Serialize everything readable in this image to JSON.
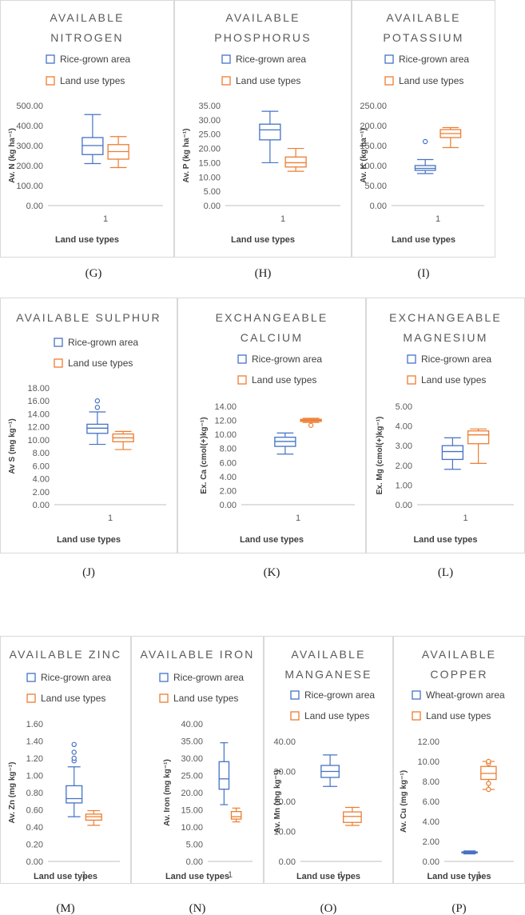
{
  "colors": {
    "series1": "#4472C4",
    "series2": "#ED7D31",
    "border": "#D9D9D9",
    "axis": "#BFBFBF"
  },
  "chart_data": [
    {
      "type": "box",
      "panel": "(G)",
      "title": [
        "AVAILABLE",
        "NITROGEN"
      ],
      "ylabel": "Av. N (kg ha⁻¹)",
      "xlabel": "Land use types",
      "category": "1",
      "yticks": [
        "0.00",
        "100.00",
        "200.00",
        "300.00",
        "400.00",
        "500.00"
      ],
      "ylim": [
        0,
        500
      ],
      "series": [
        {
          "name": "Rice-grown area",
          "min": 210,
          "q1": 255,
          "median": 300,
          "q3": 340,
          "max": 455,
          "outliers": []
        },
        {
          "name": "Land use types",
          "min": 190,
          "q1": 232,
          "median": 270,
          "q3": 305,
          "max": 345,
          "outliers": []
        }
      ]
    },
    {
      "type": "box",
      "panel": "(H)",
      "title": [
        "AVAILABLE",
        "PHOSPHORUS"
      ],
      "ylabel": "Av. P (kg ha⁻¹)",
      "xlabel": "Land use types",
      "category": "1",
      "yticks": [
        "0.00",
        "5.00",
        "10.00",
        "15.00",
        "20.00",
        "25.00",
        "30.00",
        "35.00"
      ],
      "ylim": [
        0,
        35
      ],
      "series": [
        {
          "name": "Rice-grown area",
          "min": 15,
          "q1": 23,
          "median": 26.5,
          "q3": 28.5,
          "max": 33,
          "outliers": []
        },
        {
          "name": "Land use types",
          "min": 12,
          "q1": 13.5,
          "median": 15,
          "q3": 17,
          "max": 20,
          "outliers": []
        }
      ]
    },
    {
      "type": "box",
      "panel": "(I)",
      "title": [
        "AVAILABLE",
        "POTASSIUM"
      ],
      "ylabel": "Av. K (kg ha⁻¹)",
      "xlabel": "Land use types",
      "category": "1",
      "yticks": [
        "0.00",
        "50.00",
        "100.00",
        "150.00",
        "200.00",
        "250.00"
      ],
      "ylim": [
        0,
        250
      ],
      "series": [
        {
          "name": "Rice-grown area",
          "min": 80,
          "q1": 88,
          "median": 93,
          "q3": 100,
          "max": 115,
          "outliers": [
            160
          ]
        },
        {
          "name": "Land use types",
          "min": 145,
          "q1": 170,
          "median": 180,
          "q3": 190,
          "max": 195,
          "outliers": []
        }
      ]
    },
    {
      "type": "box",
      "panel": "(J)",
      "title": [
        "AVAILABLE SULPHUR"
      ],
      "ylabel": "Av S (mg kg⁻¹)",
      "xlabel": "Land use types",
      "category": "1",
      "yticks": [
        "0.00",
        "2.00",
        "4.00",
        "6.00",
        "8.00",
        "10.00",
        "12.00",
        "14.00",
        "16.00",
        "18.00"
      ],
      "ylim": [
        0,
        18
      ],
      "series": [
        {
          "name": "Rice-grown area",
          "min": 9.3,
          "q1": 11,
          "median": 11.8,
          "q3": 12.4,
          "max": 14.3,
          "outliers": [
            15,
            16
          ]
        },
        {
          "name": "Land use types",
          "min": 8.5,
          "q1": 9.7,
          "median": 10.3,
          "q3": 10.9,
          "max": 11.3,
          "outliers": []
        }
      ]
    },
    {
      "type": "box",
      "panel": "(K)",
      "title": [
        "EXCHANGEABLE",
        "CALCIUM"
      ],
      "ylabel": "Ex. Ca (cmol(+)kg⁻¹)",
      "xlabel": "Land use types",
      "category": "1",
      "yticks": [
        "0.00",
        "2.00",
        "4.00",
        "6.00",
        "8.00",
        "10.00",
        "12.00",
        "14.00"
      ],
      "ylim": [
        0,
        14
      ],
      "series": [
        {
          "name": "Rice-grown area",
          "min": 7.2,
          "q1": 8.3,
          "median": 9,
          "q3": 9.6,
          "max": 10.2,
          "outliers": []
        },
        {
          "name": "Land use types",
          "min": 11.7,
          "q1": 11.85,
          "median": 12,
          "q3": 12.15,
          "max": 12.3,
          "outliers": [
            11.3
          ]
        }
      ]
    },
    {
      "type": "box",
      "panel": "(L)",
      "title": [
        "EXCHANGEABLE",
        "MAGNESIUM"
      ],
      "ylabel": "Ex. Mg (cmol(+)kg⁻¹)",
      "xlabel": "Land use types",
      "category": "1",
      "yticks": [
        "0.00",
        "1.00",
        "2.00",
        "3.00",
        "4.00",
        "5.00"
      ],
      "ylim": [
        0,
        5
      ],
      "series": [
        {
          "name": "Rice-grown area",
          "min": 1.8,
          "q1": 2.3,
          "median": 2.7,
          "q3": 3,
          "max": 3.4,
          "outliers": []
        },
        {
          "name": "Land use types",
          "min": 2.1,
          "q1": 3.1,
          "median": 3.55,
          "q3": 3.75,
          "max": 3.85,
          "outliers": []
        }
      ]
    },
    {
      "type": "box",
      "panel": "(M)",
      "title": [
        "AVAILABLE ZINC"
      ],
      "ylabel": "Av. Zn (mg kg⁻¹)",
      "xlabel": "Land use types",
      "category": "1",
      "yticks": [
        "0.00",
        "0.20",
        "0.40",
        "0.60",
        "0.80",
        "1.00",
        "1.20",
        "1.40",
        "1.60"
      ],
      "ylim": [
        0,
        1.6
      ],
      "series": [
        {
          "name": "Rice-grown area",
          "min": 0.52,
          "q1": 0.68,
          "median": 0.73,
          "q3": 0.88,
          "max": 1.1,
          "outliers": [
            1.17,
            1.2,
            1.27,
            1.36
          ]
        },
        {
          "name": "Land use types",
          "min": 0.42,
          "q1": 0.48,
          "median": 0.52,
          "q3": 0.55,
          "max": 0.59,
          "outliers": []
        }
      ]
    },
    {
      "type": "box",
      "panel": "(N)",
      "title": [
        "AVAILABLE IRON"
      ],
      "ylabel": "Av. Iron (mg kg⁻¹)",
      "xlabel": "Land use types",
      "category": "1",
      "yticks": [
        "0.00",
        "5.00",
        "10.00",
        "15.00",
        "20.00",
        "25.00",
        "30.00",
        "35.00",
        "40.00"
      ],
      "ylim": [
        0,
        40
      ],
      "series": [
        {
          "name": "Rice-grown area",
          "min": 16.5,
          "q1": 21,
          "median": 24,
          "q3": 29,
          "max": 34.5,
          "outliers": []
        },
        {
          "name": "Land use types",
          "min": 11.5,
          "q1": 12.3,
          "median": 13,
          "q3": 14.5,
          "max": 15.5,
          "outliers": []
        }
      ]
    },
    {
      "type": "box",
      "panel": "(O)",
      "title": [
        "AVAILABLE",
        "MANGANESE"
      ],
      "ylabel": "Av. Mn (mg kg⁻¹)",
      "xlabel": "Land use types",
      "category": "1",
      "yticks": [
        "0.00",
        "10.00",
        "20.00",
        "30.00",
        "40.00"
      ],
      "ylim": [
        0,
        40
      ],
      "series": [
        {
          "name": "Rice-grown area",
          "min": 25,
          "q1": 28,
          "median": 30,
          "q3": 32,
          "max": 35.5,
          "outliers": []
        },
        {
          "name": "Land use types",
          "min": 12,
          "q1": 13,
          "median": 15,
          "q3": 16.5,
          "max": 18,
          "outliers": []
        }
      ]
    },
    {
      "type": "box",
      "panel": "(P)",
      "title": [
        "AVAILABLE",
        "COPPER"
      ],
      "ylabel": "Av. Cu (mg kg⁻¹)",
      "xlabel": "Land use types",
      "category": "1",
      "yticks": [
        "0.00",
        "2.00",
        "4.00",
        "6.00",
        "8.00",
        "10.00",
        "12.00"
      ],
      "ylim": [
        0,
        12
      ],
      "series": [
        {
          "name": "Wheat-grown area",
          "min": 0.75,
          "q1": 0.85,
          "median": 0.9,
          "q3": 0.95,
          "max": 1.05,
          "outliers": []
        },
        {
          "name": "Land use types",
          "min": 7.2,
          "q1": 8.2,
          "median": 8.8,
          "q3": 9.5,
          "max": 10,
          "outliers": [
            7.2,
            7.8,
            9.8,
            10
          ]
        }
      ]
    }
  ]
}
